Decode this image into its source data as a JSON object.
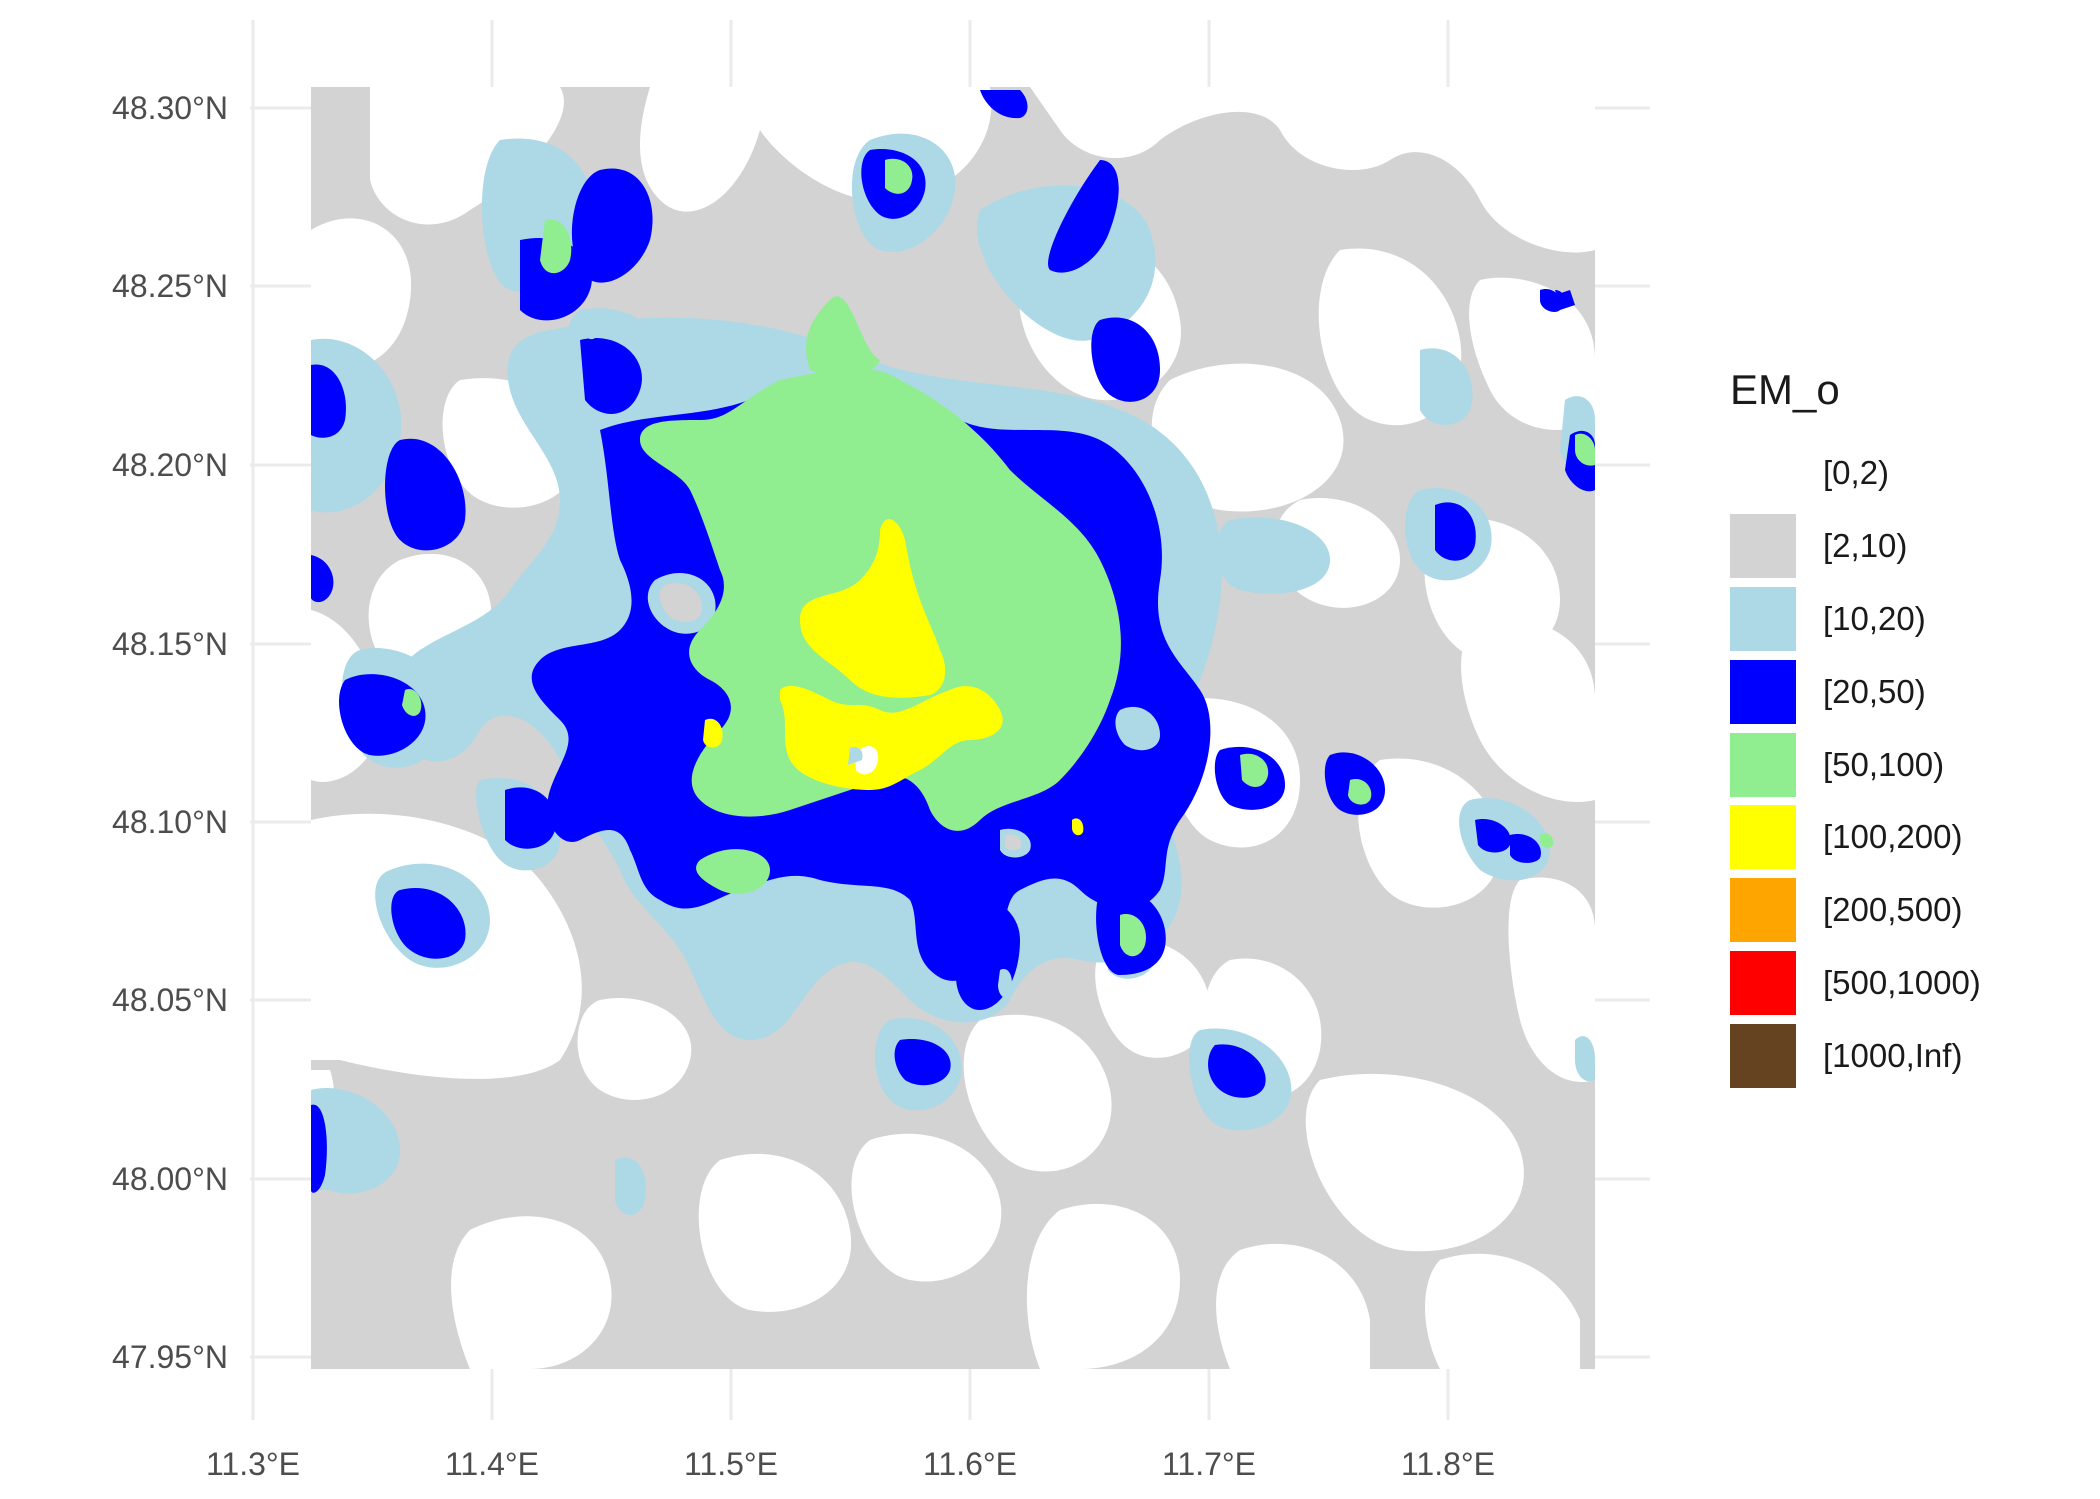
{
  "axes": {
    "x_ticks": [
      "11.3°E",
      "11.4°E",
      "11.5°E",
      "11.6°E",
      "11.7°E",
      "11.8°E"
    ],
    "y_ticks": [
      "48.30°N",
      "48.25°N",
      "48.20°N",
      "48.15°N",
      "48.10°N",
      "48.05°N",
      "48.00°N",
      "47.95°N"
    ]
  },
  "legend": {
    "title": "EM_o",
    "items": [
      {
        "label": "[0,2)",
        "color": "#ffffff"
      },
      {
        "label": "[2,10)",
        "color": "#d3d3d3"
      },
      {
        "label": "[10,20)",
        "color": "#add8e6"
      },
      {
        "label": "[20,50)",
        "color": "#0000ff"
      },
      {
        "label": "[50,100)",
        "color": "#90ee90"
      },
      {
        "label": "[100,200)",
        "color": "#ffff00"
      },
      {
        "label": "[200,500)",
        "color": "#ffa500"
      },
      {
        "label": "[500,1000)",
        "color": "#ff0000"
      },
      {
        "label": "[1000,Inf)",
        "color": "#654321"
      }
    ]
  }
}
